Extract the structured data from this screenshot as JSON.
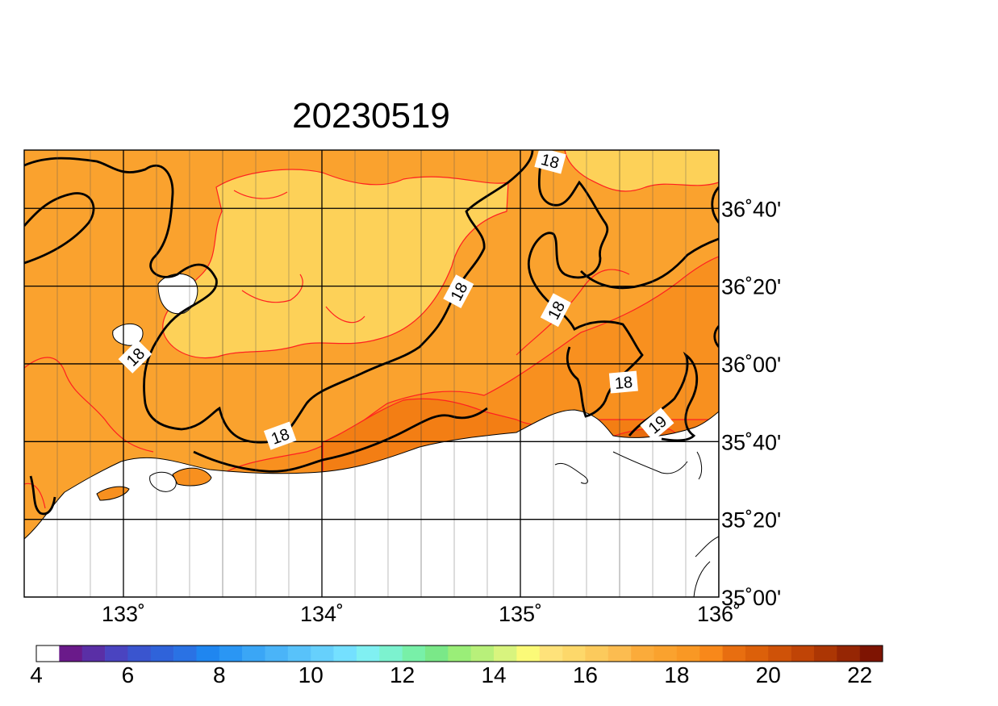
{
  "title": "20230519",
  "map": {
    "lon_range": [
      132.5,
      136.0
    ],
    "lat_range": [
      35.0,
      36.9167
    ],
    "lon_ticks": [
      {
        "value": 133,
        "label": "133˚"
      },
      {
        "value": 134,
        "label": "134˚"
      },
      {
        "value": 135,
        "label": "135˚"
      },
      {
        "value": 136,
        "label": "136˚"
      }
    ],
    "lat_ticks": [
      {
        "value": 35.0,
        "label": "35˚00'"
      },
      {
        "value": 35.3333,
        "label": "35˚20'"
      },
      {
        "value": 35.6667,
        "label": "35˚40'"
      },
      {
        "value": 36.0,
        "label": "36˚00'"
      },
      {
        "value": 36.3333,
        "label": "36˚20'"
      },
      {
        "value": 36.6667,
        "label": "36˚40'"
      }
    ],
    "grid": true,
    "contour_labels": [
      {
        "text": "18",
        "lon": 135.15,
        "lat": 36.87,
        "angle": 15
      },
      {
        "text": "18",
        "lon": 134.69,
        "lat": 36.31,
        "angle": -62
      },
      {
        "text": "18",
        "lon": 135.18,
        "lat": 36.23,
        "angle": -62
      },
      {
        "text": "18",
        "lon": 133.06,
        "lat": 36.03,
        "angle": -45
      },
      {
        "text": "18",
        "lon": 135.52,
        "lat": 35.92,
        "angle": -5
      },
      {
        "text": "18",
        "lon": 133.79,
        "lat": 35.69,
        "angle": -20
      },
      {
        "text": "19",
        "lon": 135.69,
        "lat": 35.74,
        "angle": -40
      }
    ]
  },
  "colorbar": {
    "min": 4,
    "max": 22,
    "step": 0.5,
    "tick_labels": [
      "4",
      "6",
      "8",
      "10",
      "12",
      "14",
      "16",
      "18",
      "20",
      "22"
    ],
    "colors": [
      "#ffffff",
      "#6a1a8a",
      "#5a2fa6",
      "#4a44c0",
      "#3a55cf",
      "#2f63da",
      "#2a72e4",
      "#1f86f0",
      "#2a96f4",
      "#3aa6f6",
      "#4ab4f8",
      "#58c2fa",
      "#66d0fc",
      "#74e0ff",
      "#80f0f2",
      "#7cf2cf",
      "#78f0a8",
      "#7ae888",
      "#9aee78",
      "#b8f07a",
      "#d8f47e",
      "#fbfa78",
      "#fee27a",
      "#fdd86a",
      "#fcca5c",
      "#fcbc50",
      "#fbab3a",
      "#faa22e",
      "#f99824",
      "#f8881a",
      "#e86e10",
      "#dc600a",
      "#cf5208",
      "#c04406",
      "#ac3604",
      "#962604",
      "#7e1402"
    ]
  },
  "palette": {
    "lightyellow": "#fdd158",
    "lightorange": "#faa22e",
    "orange": "#f8901f",
    "darkorange": "#f37e14",
    "deeporange": "#e86c0e",
    "contour_black": "#000000",
    "contour_red": "#ff2020"
  }
}
